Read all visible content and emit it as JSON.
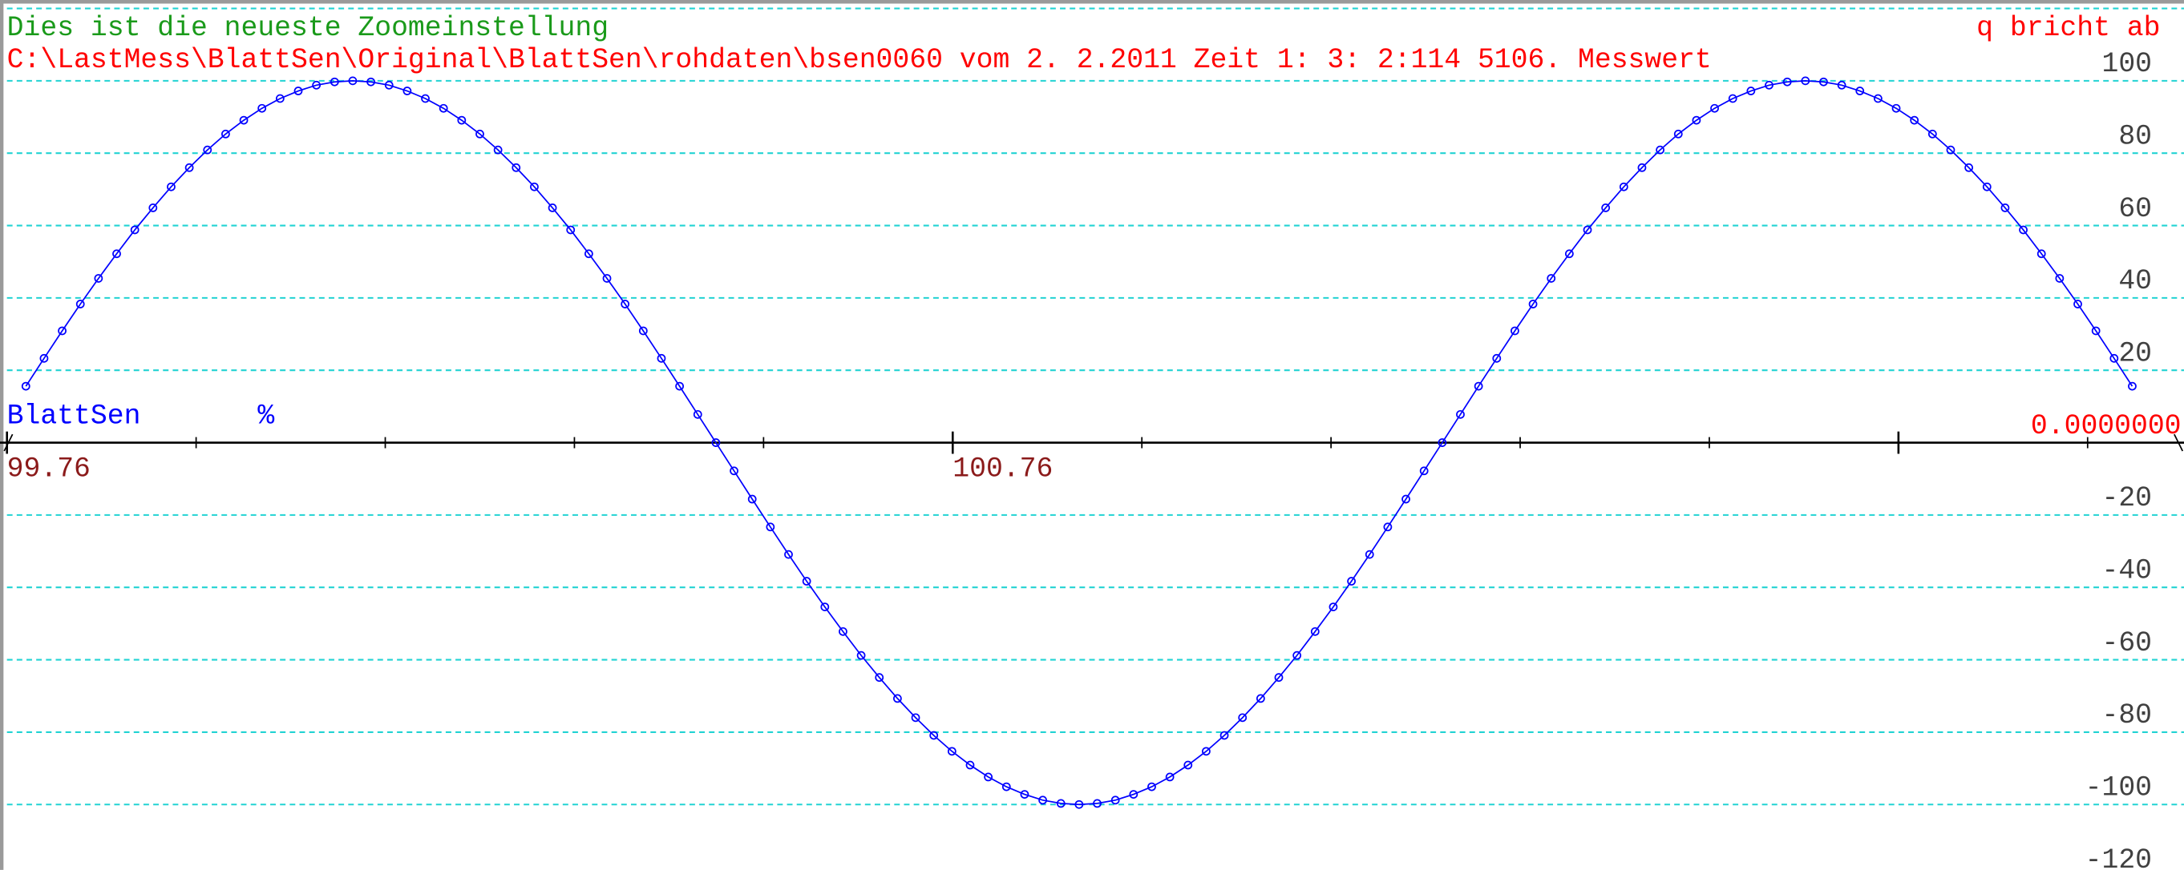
{
  "chart_data": {
    "type": "line",
    "title": "Dies ist die neueste Zoomeinstellung",
    "subtitle": "C:\\LastMess\\BlattSen\\Original\\BlattSen\\rohdaten\\bsen0060 vom  2. 2.2011 Zeit  1: 3: 2:114  5106. Messwert",
    "quit_hint": "q bricht ab",
    "title_color": "#1a9a1a",
    "subtitle_color": "#ff0000",
    "x": [
      99.78,
      99.7992,
      99.8184,
      99.8376,
      99.8568,
      99.876,
      99.8952,
      99.9144,
      99.9336,
      99.9528,
      99.972,
      99.9912,
      100.0104,
      100.0296,
      100.0488,
      100.068,
      100.0872,
      100.1064,
      100.1256,
      100.1448,
      100.164,
      100.1832,
      100.2024,
      100.2216,
      100.2408,
      100.26,
      100.2792,
      100.2984,
      100.3176,
      100.3368,
      100.356,
      100.3752,
      100.3944,
      100.4136,
      100.4328,
      100.452,
      100.4712,
      100.4904,
      100.5096,
      100.5288,
      100.548,
      100.5672,
      100.5864,
      100.6056,
      100.6248,
      100.644,
      100.6632,
      100.6824,
      100.7016,
      100.7208,
      100.74,
      100.7592,
      100.7784,
      100.7976,
      100.8168,
      100.836,
      100.8552,
      100.8744,
      100.8936,
      100.9128,
      100.932,
      100.9512,
      100.9704,
      100.9896,
      101.0088,
      101.028,
      101.0472,
      101.0664,
      101.0856,
      101.1048,
      101.124,
      101.1432,
      101.1624,
      101.1816,
      101.2008,
      101.22,
      101.2392,
      101.2584,
      101.2776,
      101.2968,
      101.316,
      101.3352,
      101.3544,
      101.3736,
      101.3928,
      101.412,
      101.4312,
      101.4504,
      101.4696,
      101.4888,
      101.508,
      101.5272,
      101.5464,
      101.5656,
      101.5848,
      101.604,
      101.6232,
      101.6424,
      101.6616,
      101.6808,
      101.7,
      101.7192,
      101.7384,
      101.7576,
      101.7768,
      101.796,
      101.8152,
      101.8344,
      101.8536,
      101.8728,
      101.892,
      101.9112,
      101.9304,
      101.9496,
      101.9688,
      101.988,
      102.0072
    ],
    "series": [
      {
        "name": "BlattSen",
        "unit": "%",
        "color": "#0000ff",
        "values": [
          15.6,
          23.3,
          30.9,
          38.3,
          45.4,
          52.2,
          58.8,
          64.9,
          70.7,
          76.0,
          80.9,
          85.3,
          89.1,
          92.4,
          95.1,
          97.2,
          98.8,
          99.7,
          100,
          99.7,
          98.8,
          97.2,
          95.1,
          92.4,
          89.1,
          85.3,
          80.9,
          76.0,
          70.7,
          64.9,
          58.8,
          52.2,
          45.4,
          38.3,
          30.9,
          23.3,
          15.6,
          7.8,
          0,
          -7.8,
          -15.6,
          -23.3,
          -30.9,
          -38.3,
          -45.4,
          -52.2,
          -58.8,
          -64.9,
          -70.7,
          -76.0,
          -80.9,
          -85.3,
          -89.1,
          -92.4,
          -95.1,
          -97.2,
          -98.8,
          -99.7,
          -100,
          -99.7,
          -98.8,
          -97.2,
          -95.1,
          -92.4,
          -89.1,
          -85.3,
          -80.9,
          -76.0,
          -70.7,
          -64.9,
          -58.8,
          -52.2,
          -45.4,
          -38.3,
          -30.9,
          -23.3,
          -15.6,
          -7.8,
          0,
          7.8,
          15.6,
          23.3,
          30.9,
          38.3,
          45.4,
          52.2,
          58.8,
          64.9,
          70.7,
          76.0,
          80.9,
          85.3,
          89.1,
          92.4,
          95.1,
          97.2,
          98.8,
          99.7,
          100,
          99.7,
          98.8,
          97.2,
          95.1,
          92.4,
          89.1,
          85.3,
          80.9,
          76.0,
          70.7,
          64.9,
          58.8,
          52.2,
          45.4,
          38.3,
          30.9,
          23.3,
          15.6
        ]
      }
    ],
    "xlim": [
      99.76,
      102.06
    ],
    "xticks": [
      99.76,
      100.76,
      {
        "value": 101.76,
        "label": null
      }
    ],
    "xminor_ticks": [
      99.96,
      100.16,
      100.36,
      100.56,
      100.96,
      101.16,
      101.36,
      101.56,
      101.96
    ],
    "xtick_color": "#8b1a1a",
    "ylim": [
      -118,
      122
    ],
    "yticks": [
      {
        "value": 120,
        "label": null
      },
      100,
      80,
      60,
      40,
      20,
      {
        "value": 0,
        "label": "0.0000000"
      },
      -20,
      -40,
      -60,
      -80,
      -100,
      -120
    ],
    "ytick_color": "#404040",
    "zero_tick_color": "#ff0000",
    "grid": true,
    "grid_color": "#22d3d3"
  }
}
